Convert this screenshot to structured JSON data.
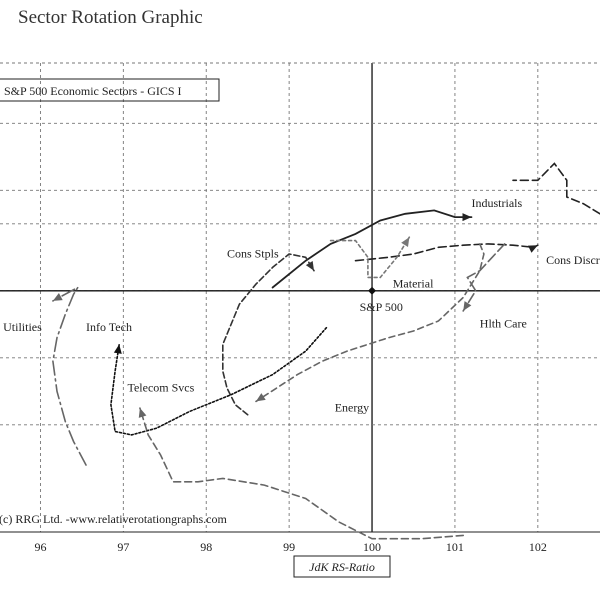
{
  "chart_data": {
    "type": "line",
    "title": "Sector Rotation Graphic",
    "legend": "S&P 500 Economic Sectors - GICS I",
    "copyright": "(c) RRG Ltd. -www.relativerotationgraphs.com",
    "xlabel": "JdK RS-Ratio",
    "ylabel": "",
    "xlim": [
      95.5,
      102.75
    ],
    "ylim": [
      96.4,
      103.4
    ],
    "x_ticks": [
      "96",
      "97",
      "98",
      "99",
      "100",
      "101",
      "102"
    ],
    "x_tick_values": [
      96,
      97,
      98,
      99,
      100,
      101,
      102
    ],
    "y_grid": [
      102.5,
      101.5,
      101.0,
      100.0,
      99.0,
      98.0
    ],
    "reference_point": {
      "name": "S&P 500",
      "x": 100,
      "y": 100
    },
    "series": [
      {
        "name": "Industrials",
        "color": "#222222",
        "dash": "",
        "points": [
          [
            98.8,
            100.05
          ],
          [
            99.2,
            100.45
          ],
          [
            99.5,
            100.7
          ],
          [
            99.8,
            100.85
          ],
          [
            100.1,
            101.05
          ],
          [
            100.4,
            101.15
          ],
          [
            100.75,
            101.2
          ],
          [
            101.0,
            101.1
          ],
          [
            101.2,
            101.1
          ]
        ]
      },
      {
        "name": "Cons Discr",
        "color": "#222222",
        "dash": "8 4",
        "points": [
          [
            102.75,
            101.15
          ],
          [
            102.55,
            101.3
          ],
          [
            102.35,
            101.4
          ],
          [
            102.35,
            101.65
          ],
          [
            102.2,
            101.9
          ],
          [
            102.0,
            101.65
          ],
          [
            101.75,
            101.65
          ],
          [
            101.7,
            101.65
          ]
        ],
        "tail_gap": true,
        "points2": [
          [
            99.8,
            100.45
          ],
          [
            100.2,
            100.5
          ],
          [
            100.5,
            100.55
          ],
          [
            100.8,
            100.65
          ],
          [
            101.1,
            100.68
          ],
          [
            101.4,
            100.7
          ],
          [
            101.7,
            100.68
          ],
          [
            101.95,
            100.65
          ],
          [
            102.0,
            100.68
          ]
        ]
      },
      {
        "name": "Material",
        "color": "#777777",
        "dash": "3 3",
        "points": [
          [
            99.5,
            100.75
          ],
          [
            99.8,
            100.75
          ],
          [
            99.95,
            100.5
          ],
          [
            99.95,
            100.2
          ],
          [
            100.1,
            100.2
          ],
          [
            100.3,
            100.5
          ],
          [
            100.45,
            100.8
          ]
        ]
      },
      {
        "name": "Hlth Care",
        "color": "#666666",
        "dash": "10 4",
        "points": [
          [
            101.6,
            100.7
          ],
          [
            101.45,
            100.5
          ],
          [
            101.3,
            100.3
          ],
          [
            101.15,
            100.2
          ],
          [
            101.25,
            100.0
          ],
          [
            101.1,
            99.7
          ]
        ]
      },
      {
        "name": "Energy",
        "color": "#666666",
        "dash": "6 4",
        "points": [
          [
            101.3,
            100.7
          ],
          [
            101.35,
            100.55
          ],
          [
            101.3,
            100.3
          ],
          [
            101.1,
            99.9
          ],
          [
            100.8,
            99.55
          ],
          [
            100.5,
            99.4
          ],
          [
            100.2,
            99.3
          ],
          [
            99.7,
            99.1
          ],
          [
            99.4,
            98.95
          ],
          [
            99.1,
            98.75
          ],
          [
            98.85,
            98.55
          ],
          [
            98.6,
            98.35
          ]
        ]
      },
      {
        "name": "Cons Stpls",
        "color": "#333333",
        "dash": "6 3",
        "points": [
          [
            98.5,
            98.15
          ],
          [
            98.35,
            98.3
          ],
          [
            98.25,
            98.55
          ],
          [
            98.2,
            98.8
          ],
          [
            98.2,
            99.2
          ],
          [
            98.3,
            99.5
          ],
          [
            98.4,
            99.8
          ],
          [
            98.6,
            100.1
          ],
          [
            98.8,
            100.35
          ],
          [
            99.0,
            100.55
          ],
          [
            99.2,
            100.5
          ],
          [
            99.3,
            100.3
          ]
        ]
      },
      {
        "name": "Utilities",
        "color": "#666666",
        "dash": "14 4 2 4",
        "points": [
          [
            96.55,
            97.4
          ],
          [
            96.4,
            97.75
          ],
          [
            96.3,
            98.05
          ],
          [
            96.2,
            98.5
          ],
          [
            96.15,
            98.95
          ],
          [
            96.2,
            99.3
          ],
          [
            96.3,
            99.65
          ],
          [
            96.4,
            99.95
          ],
          [
            96.45,
            100.05
          ],
          [
            96.3,
            99.95
          ],
          [
            96.15,
            99.85
          ]
        ]
      },
      {
        "name": "Info Tech",
        "color": "#111111",
        "dash": "2 2",
        "points": [
          [
            99.45,
            99.45
          ],
          [
            99.2,
            99.1
          ],
          [
            98.8,
            98.75
          ],
          [
            98.3,
            98.45
          ],
          [
            97.8,
            98.2
          ],
          [
            97.4,
            97.95
          ],
          [
            97.1,
            97.85
          ],
          [
            96.9,
            97.9
          ],
          [
            96.85,
            98.3
          ],
          [
            96.9,
            98.8
          ],
          [
            96.95,
            99.2
          ]
        ]
      },
      {
        "name": "Telecom Svcs",
        "color": "#666666",
        "dash": "7 4",
        "points": [
          [
            101.1,
            96.35
          ],
          [
            100.6,
            96.3
          ],
          [
            100.0,
            96.3
          ],
          [
            99.6,
            96.55
          ],
          [
            99.2,
            96.9
          ],
          [
            98.7,
            97.1
          ],
          [
            98.2,
            97.2
          ],
          [
            97.9,
            97.15
          ],
          [
            97.6,
            97.15
          ],
          [
            97.45,
            97.55
          ],
          [
            97.3,
            97.85
          ],
          [
            97.2,
            98.25
          ]
        ]
      }
    ],
    "sector_labels": [
      {
        "name": "Industrials",
        "x": 101.2,
        "y": 101.25
      },
      {
        "name": "Cons Discr",
        "x": 102.1,
        "y": 100.4
      },
      {
        "name": "Material",
        "x": 100.25,
        "y": 100.05
      },
      {
        "name": "Cons Stpls",
        "x": 98.25,
        "y": 100.5
      },
      {
        "name": "S&P 500",
        "x": 99.85,
        "y": 99.7
      },
      {
        "name": "Hlth Care",
        "x": 101.3,
        "y": 99.45
      },
      {
        "name": "Utilities",
        "x": 95.55,
        "y": 99.4
      },
      {
        "name": "Info Tech",
        "x": 96.55,
        "y": 99.4
      },
      {
        "name": "Telecom Svcs",
        "x": 97.05,
        "y": 98.5
      },
      {
        "name": "Energy",
        "x": 99.55,
        "y": 98.2
      }
    ]
  }
}
